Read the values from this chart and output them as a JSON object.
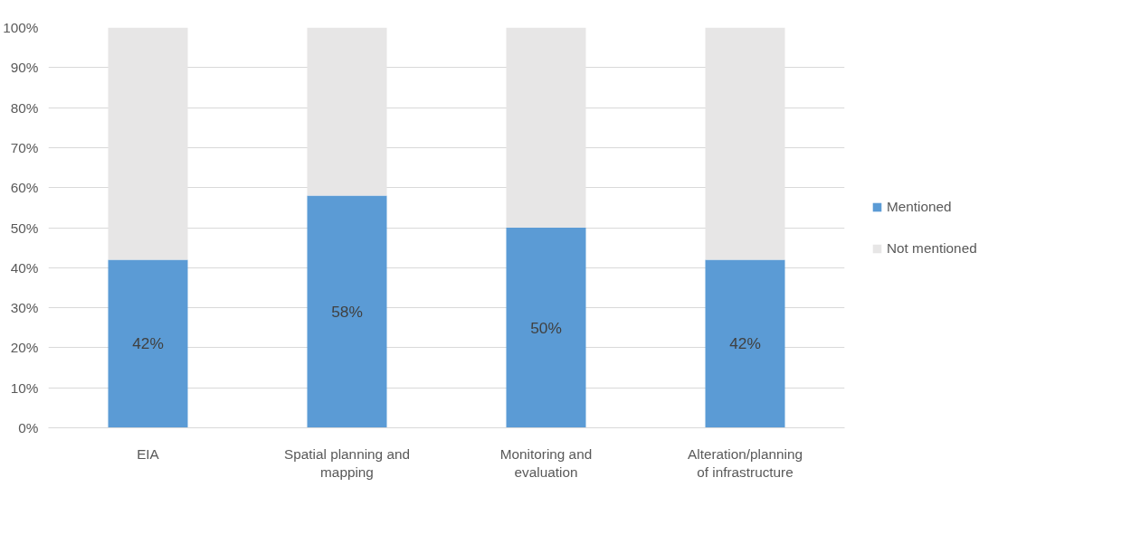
{
  "chart_data": {
    "type": "bar",
    "stacked": true,
    "categories": [
      "EIA",
      "Spatial planning and mapping",
      "Monitoring and evaluation",
      "Alteration/planning of infrastructure"
    ],
    "series": [
      {
        "name": "Mentioned",
        "color": "#5b9bd5",
        "values": [
          42,
          58,
          50,
          42
        ],
        "value_labels": [
          "42%",
          "58%",
          "50%",
          "42%"
        ]
      },
      {
        "name": "Not mentioned",
        "color": "#e7e6e6",
        "values": [
          58,
          42,
          50,
          58
        ]
      }
    ],
    "ylim": [
      0,
      100
    ],
    "yticks": [
      {
        "value": 0,
        "label": "0%"
      },
      {
        "value": 10,
        "label": "10%"
      },
      {
        "value": 20,
        "label": "20%"
      },
      {
        "value": 30,
        "label": "30%"
      },
      {
        "value": 40,
        "label": "40%"
      },
      {
        "value": 50,
        "label": "50%"
      },
      {
        "value": 60,
        "label": "60%"
      },
      {
        "value": 70,
        "label": "70%"
      },
      {
        "value": 80,
        "label": "80%"
      },
      {
        "value": 90,
        "label": "90%"
      },
      {
        "value": 100,
        "label": "100%"
      }
    ],
    "grid": "y",
    "legend": "right"
  }
}
